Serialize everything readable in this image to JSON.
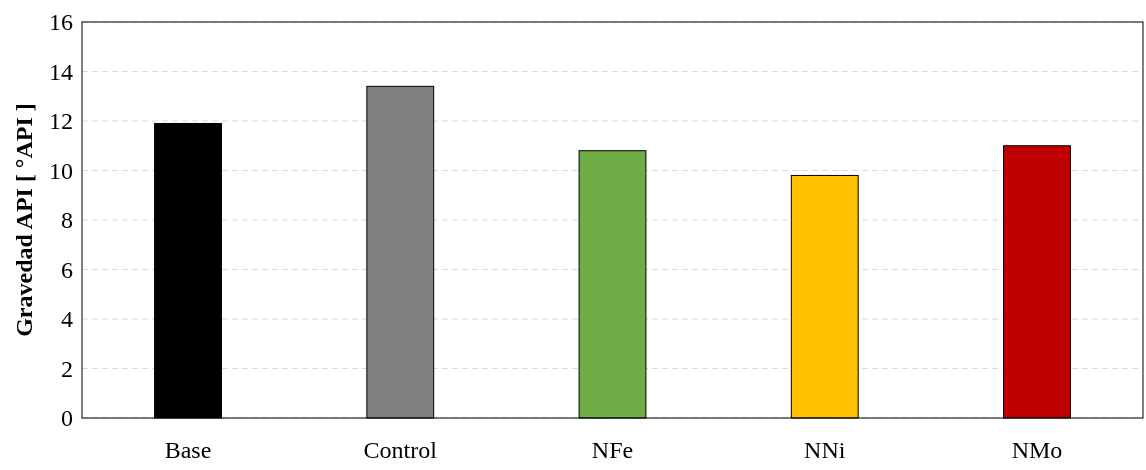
{
  "chart_data": {
    "type": "bar",
    "ylabel": "Gravedad API [ °API ]",
    "categories": [
      "Base",
      "Control",
      "NFe",
      "NNi",
      "NMo"
    ],
    "values": [
      11.9,
      13.4,
      10.8,
      9.8,
      11.0
    ],
    "colors": [
      "#000000",
      "#808080",
      "#70ad47",
      "#ffc000",
      "#c00000"
    ],
    "ylim": [
      0,
      16
    ],
    "yticks": [
      0,
      2,
      4,
      6,
      8,
      10,
      12,
      14,
      16
    ],
    "grid": "y"
  }
}
